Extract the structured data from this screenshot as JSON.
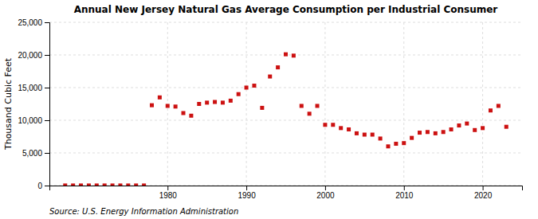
{
  "chart_data": {
    "type": "scatter",
    "title": "Annual New Jersey Natural Gas Average Consumption per Industrial Consumer",
    "ylabel": "Thousand Cubic Feet",
    "source": "Source: U.S. Energy Information Administration",
    "x": [
      1967,
      1968,
      1969,
      1970,
      1971,
      1972,
      1973,
      1974,
      1975,
      1976,
      1977,
      1978,
      1979,
      1980,
      1981,
      1982,
      1983,
      1984,
      1985,
      1986,
      1987,
      1988,
      1989,
      1990,
      1991,
      1992,
      1993,
      1994,
      1995,
      1996,
      1997,
      1998,
      1999,
      2000,
      2001,
      2002,
      2003,
      2004,
      2005,
      2006,
      2007,
      2008,
      2009,
      2010,
      2011,
      2012,
      2013,
      2014,
      2015,
      2016,
      2017,
      2018,
      2019,
      2020,
      2021,
      2022,
      2023
    ],
    "values": [
      10,
      10,
      10,
      10,
      10,
      10,
      10,
      10,
      10,
      10,
      10,
      12300,
      13500,
      12200,
      12100,
      11100,
      10700,
      12500,
      12700,
      12800,
      12700,
      13000,
      14000,
      15000,
      15300,
      11900,
      16700,
      18100,
      20100,
      19900,
      12200,
      11000,
      12200,
      9300,
      9300,
      8800,
      8600,
      8000,
      7800,
      7800,
      7200,
      6000,
      6400,
      6500,
      7300,
      8100,
      8200,
      8000,
      8200,
      8600,
      9200,
      9500,
      8500,
      8800,
      11500,
      12200,
      9000
    ],
    "color": "#cc1111",
    "marker": "square",
    "xlim": [
      1965,
      2025
    ],
    "xticks": [
      1980,
      1990,
      2000,
      2010,
      2020
    ],
    "ylim": [
      0,
      25000
    ],
    "yticks": [
      0,
      {
        "value": 5000,
        "label": "5,000"
      },
      {
        "value": 10000,
        "label": "10,000"
      },
      {
        "value": 15000,
        "label": "15,000"
      },
      {
        "value": 20000,
        "label": "20,000"
      },
      {
        "value": 25000,
        "label": "25,000"
      }
    ],
    "grid": true
  }
}
